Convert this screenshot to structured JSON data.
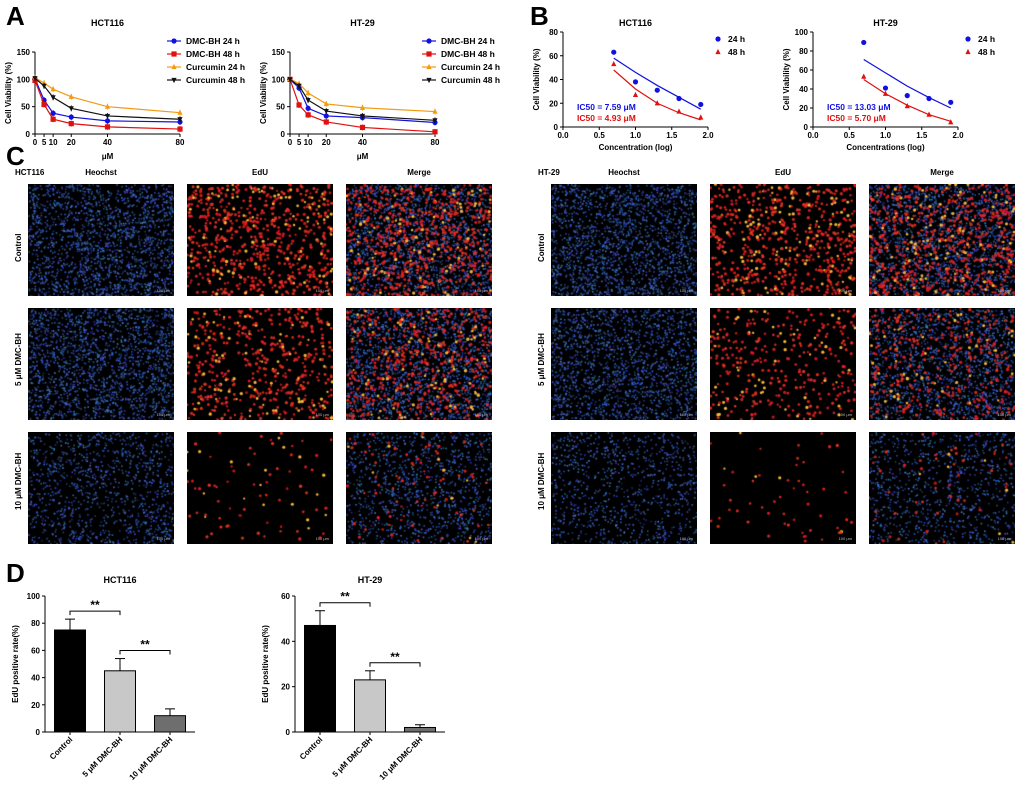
{
  "panels": {
    "a": "A",
    "b": "B",
    "c": "C",
    "d": "D"
  },
  "chart_data": [
    {
      "id": "a1",
      "type": "line",
      "title": "HCT116",
      "ylabel": "Cell Viability (%)",
      "xlabel": "μM",
      "x": [
        0,
        5,
        10,
        20,
        40,
        80
      ],
      "xticks": [
        "0",
        "5",
        "10",
        "20",
        "40",
        "80"
      ],
      "ylim": [
        0,
        150
      ],
      "yticks": [
        0,
        50,
        100,
        150
      ],
      "xlim": [
        0,
        80
      ],
      "series": [
        {
          "name": "DMC-BH 24 h",
          "color": "#1010e0",
          "marker": "circle",
          "values": [
            101,
            62,
            38,
            31,
            24,
            22
          ]
        },
        {
          "name": "DMC-BH 48 h",
          "color": "#e01010",
          "marker": "square",
          "values": [
            98,
            54,
            27,
            19,
            13,
            9
          ]
        },
        {
          "name": "Curcumin 24 h",
          "color": "#f29a10",
          "marker": "triangle-up",
          "values": [
            103,
            93,
            82,
            68,
            50,
            39
          ]
        },
        {
          "name": "Curcumin 48 h",
          "color": "#111111",
          "marker": "triangle-down",
          "values": [
            102,
            88,
            67,
            47,
            33,
            27
          ]
        }
      ]
    },
    {
      "id": "a2",
      "type": "line",
      "title": "HT-29",
      "ylabel": "Cell Viability (%)",
      "xlabel": "μM",
      "x": [
        0,
        5,
        10,
        20,
        40,
        80
      ],
      "xticks": [
        "0",
        "5",
        "10",
        "20",
        "40",
        "80"
      ],
      "ylim": [
        0,
        150
      ],
      "yticks": [
        0,
        50,
        100,
        150
      ],
      "xlim": [
        0,
        80
      ],
      "series": [
        {
          "name": "DMC-BH 24 h",
          "color": "#1010e0",
          "marker": "circle",
          "values": [
            100,
            84,
            47,
            33,
            30,
            21
          ]
        },
        {
          "name": "DMC-BH 48 h",
          "color": "#e01010",
          "marker": "square",
          "values": [
            100,
            53,
            35,
            22,
            12,
            4
          ]
        },
        {
          "name": "Curcumin 24 h",
          "color": "#f29a10",
          "marker": "triangle-up",
          "values": [
            101,
            92,
            75,
            55,
            48,
            41
          ]
        },
        {
          "name": "Curcumin 48 h",
          "color": "#111111",
          "marker": "triangle-down",
          "values": [
            100,
            88,
            62,
            42,
            33,
            25
          ]
        }
      ]
    },
    {
      "id": "b1",
      "type": "scatter",
      "title": "HCT116",
      "ylabel": "Cell Viability (%)",
      "xlabel": "Concentration (log)",
      "xlim": [
        0,
        2.0
      ],
      "xticks": [
        0.0,
        0.5,
        1.0,
        1.5,
        2.0
      ],
      "ylim": [
        0,
        80
      ],
      "yticks": [
        0,
        20,
        40,
        60,
        80
      ],
      "series": [
        {
          "name": "24 h",
          "color": "#1010e0",
          "marker": "circle",
          "x": [
            0.7,
            1.0,
            1.3,
            1.6,
            1.9
          ],
          "values": [
            63,
            38,
            31,
            24,
            19
          ],
          "fit": [
            [
              0.7,
              58
            ],
            [
              1.0,
              46
            ],
            [
              1.3,
              35
            ],
            [
              1.6,
              25
            ],
            [
              1.9,
              15
            ]
          ]
        },
        {
          "name": "48 h",
          "color": "#e01010",
          "marker": "triangle-up",
          "x": [
            0.7,
            1.0,
            1.3,
            1.6,
            1.9
          ],
          "values": [
            53,
            27,
            20,
            13,
            8
          ],
          "fit": [
            [
              0.7,
              48
            ],
            [
              1.0,
              32
            ],
            [
              1.3,
              20
            ],
            [
              1.6,
              12
            ],
            [
              1.9,
              6
            ]
          ]
        }
      ],
      "annotations": [
        {
          "text": "IC50 = 7.59 μM",
          "color": "#1010e0"
        },
        {
          "text": "IC50 = 4.93 μM",
          "color": "#e01010"
        }
      ]
    },
    {
      "id": "b2",
      "type": "scatter",
      "title": "HT-29",
      "ylabel": "Cell Viability (%)",
      "xlabel": "Concentrations (log)",
      "xlim": [
        0,
        2.0
      ],
      "xticks": [
        0.0,
        0.5,
        1.0,
        1.5,
        2.0
      ],
      "ylim": [
        0,
        100
      ],
      "yticks": [
        0,
        20,
        40,
        60,
        80,
        100
      ],
      "series": [
        {
          "name": "24 h",
          "color": "#1010e0",
          "marker": "circle",
          "x": [
            0.7,
            1.0,
            1.3,
            1.6,
            1.9
          ],
          "values": [
            89,
            41,
            33,
            30,
            26
          ],
          "fit": [
            [
              0.7,
              71
            ],
            [
              1.0,
              57
            ],
            [
              1.3,
              43
            ],
            [
              1.6,
              31
            ],
            [
              1.9,
              20
            ]
          ]
        },
        {
          "name": "48 h",
          "color": "#e01010",
          "marker": "triangle-up",
          "x": [
            0.7,
            1.0,
            1.3,
            1.6,
            1.9
          ],
          "values": [
            53,
            35,
            22,
            13,
            5
          ],
          "fit": [
            [
              0.7,
              50
            ],
            [
              1.0,
              35
            ],
            [
              1.3,
              23
            ],
            [
              1.6,
              13
            ],
            [
              1.9,
              6
            ]
          ]
        }
      ],
      "annotations": [
        {
          "text": "IC50 = 13.03 μM",
          "color": "#1010e0"
        },
        {
          "text": "IC50 =  5.70 μM",
          "color": "#e01010"
        }
      ]
    },
    {
      "id": "d1",
      "type": "bar",
      "title": "HCT116",
      "ylabel": "EdU positive rate(%)",
      "categories": [
        "Control",
        "5 μM DMC-BH",
        "10 μM DMC-BH"
      ],
      "values": [
        75,
        45,
        12
      ],
      "errors": [
        8,
        9,
        5
      ],
      "colors": [
        "#000000",
        "#c8c8c8",
        "#6e6e6e"
      ],
      "ylim": [
        0,
        100
      ],
      "yticks": [
        0,
        20,
        40,
        60,
        80,
        100
      ],
      "significance": [
        {
          "from": 0,
          "to": 1,
          "label": "**"
        },
        {
          "from": 1,
          "to": 2,
          "label": "**"
        }
      ]
    },
    {
      "id": "d2",
      "type": "bar",
      "title": "HT-29",
      "ylabel": "EdU positive rate(%)",
      "categories": [
        "Control",
        "5 μM DMC-BH",
        "10 μM DMC-BH"
      ],
      "values": [
        47,
        23,
        2
      ],
      "errors": [
        6.5,
        4,
        1.2
      ],
      "colors": [
        "#000000",
        "#c8c8c8",
        "#6e6e6e"
      ],
      "ylim": [
        0,
        60
      ],
      "yticks": [
        0,
        20,
        40,
        60
      ],
      "significance": [
        {
          "from": 0,
          "to": 1,
          "label": "**"
        },
        {
          "from": 1,
          "to": 2,
          "label": "**"
        }
      ]
    }
  ],
  "microscopy": {
    "left": {
      "cell_line": "HCT116",
      "columns": [
        "Heochst",
        "EdU",
        "Merge"
      ],
      "rows": [
        "Control",
        "5 μM DMC-BH",
        "10 μM DMC-BH"
      ],
      "scale": "100 μm",
      "edu_density": [
        1.0,
        0.75,
        0.12
      ]
    },
    "right": {
      "cell_line": "HT-29",
      "columns": [
        "Heochst",
        "EdU",
        "Merge"
      ],
      "rows": [
        "Control",
        "5 μM DMC-BH",
        "10 μM DMC-BH"
      ],
      "scale": "100 μm",
      "edu_density": [
        0.95,
        0.5,
        0.08
      ]
    }
  }
}
